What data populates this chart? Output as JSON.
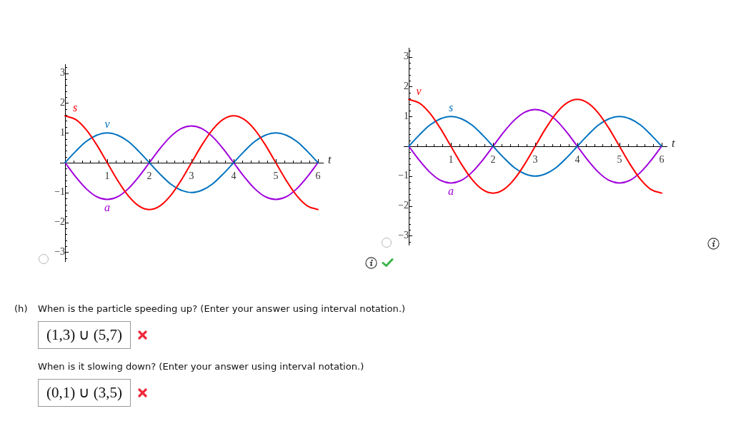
{
  "chart_data": [
    {
      "type": "line",
      "xlabel": "t",
      "x": [
        0,
        0.25,
        0.5,
        0.75,
        1,
        1.25,
        1.5,
        1.75,
        2,
        2.25,
        2.5,
        2.75,
        3,
        3.25,
        3.5,
        3.75,
        4,
        4.25,
        4.5,
        4.75,
        5,
        5.25,
        5.5,
        5.75,
        6
      ],
      "series": [
        {
          "name": "s",
          "color": "#ff0000",
          "values": [
            1.57,
            1.45,
            1.11,
            0.6,
            0,
            -0.6,
            -1.11,
            -1.45,
            -1.57,
            -1.45,
            -1.11,
            -0.6,
            0,
            0.6,
            1.11,
            1.45,
            1.57,
            1.45,
            1.11,
            0.6,
            0,
            -0.6,
            -1.11,
            -1.45,
            -1.57
          ]
        },
        {
          "name": "v",
          "color": "#0072c0",
          "values": [
            0,
            0.38,
            0.71,
            0.92,
            1,
            0.92,
            0.71,
            0.38,
            0,
            -0.38,
            -0.71,
            -0.92,
            -1,
            -0.92,
            -0.71,
            -0.38,
            0,
            0.38,
            0.71,
            0.92,
            1,
            0.92,
            0.71,
            0.38,
            0
          ]
        },
        {
          "name": "a",
          "color": "#a000dc",
          "values": [
            0,
            -0.47,
            -0.87,
            -1.14,
            -1.23,
            -1.14,
            -0.87,
            -0.47,
            0,
            0.47,
            0.87,
            1.14,
            1.23,
            1.14,
            0.87,
            0.47,
            0,
            -0.47,
            -0.87,
            -1.14,
            -1.23,
            -1.14,
            -0.87,
            -0.47,
            0
          ]
        }
      ],
      "xlim": [
        -0.12,
        6.12
      ],
      "ylim": [
        -3.3,
        3.3
      ],
      "xticks": [
        {
          "value": 0.2,
          "label": null
        },
        {
          "value": 0.4,
          "label": null
        },
        {
          "value": 0.6,
          "label": null
        },
        {
          "value": 0.8,
          "label": null
        },
        1,
        {
          "value": 1.2,
          "label": null
        },
        {
          "value": 1.4,
          "label": null
        },
        {
          "value": 1.6,
          "label": null
        },
        {
          "value": 1.8,
          "label": null
        },
        2,
        {
          "value": 2.2,
          "label": null
        },
        {
          "value": 2.4,
          "label": null
        },
        {
          "value": 2.6,
          "label": null
        },
        {
          "value": 2.8,
          "label": null
        },
        3,
        {
          "value": 3.2,
          "label": null
        },
        {
          "value": 3.4,
          "label": null
        },
        {
          "value": 3.6,
          "label": null
        },
        {
          "value": 3.8,
          "label": null
        },
        4,
        {
          "value": 4.2,
          "label": null
        },
        {
          "value": 4.4,
          "label": null
        },
        {
          "value": 4.6,
          "label": null
        },
        {
          "value": 4.8,
          "label": null
        },
        5,
        {
          "value": 5.2,
          "label": null
        },
        {
          "value": 5.4,
          "label": null
        },
        {
          "value": 5.6,
          "label": null
        },
        {
          "value": 5.8,
          "label": null
        },
        6
      ],
      "yticks": [
        {
          "value": -3.2,
          "label": null
        },
        {
          "value": -3,
          "label": "−3"
        },
        {
          "value": -2.8,
          "label": null
        },
        {
          "value": -2.6,
          "label": null
        },
        {
          "value": -2.4,
          "label": null
        },
        {
          "value": -2.2,
          "label": null
        },
        {
          "value": -2,
          "label": "−2"
        },
        {
          "value": -1.8,
          "label": null
        },
        {
          "value": -1.6,
          "label": null
        },
        {
          "value": -1.4,
          "label": null
        },
        {
          "value": -1.2,
          "label": null
        },
        {
          "value": -1,
          "label": "−1"
        },
        {
          "value": -0.8,
          "label": null
        },
        {
          "value": -0.6,
          "label": null
        },
        {
          "value": -0.4,
          "label": null
        },
        {
          "value": -0.2,
          "label": null
        },
        {
          "value": 0.2,
          "label": null
        },
        {
          "value": 0.4,
          "label": null
        },
        {
          "value": 0.6,
          "label": null
        },
        {
          "value": 0.8,
          "label": null
        },
        1,
        {
          "value": 1.2,
          "label": null
        },
        {
          "value": 1.4,
          "label": null
        },
        {
          "value": 1.6,
          "label": null
        },
        {
          "value": 1.8,
          "label": null
        },
        2,
        {
          "value": 2.2,
          "label": null
        },
        {
          "value": 2.4,
          "label": null
        },
        {
          "value": 2.6,
          "label": null
        },
        {
          "value": 2.8,
          "label": null
        },
        3,
        {
          "value": 3.2,
          "label": null
        }
      ]
    },
    {
      "type": "line",
      "xlabel": "t",
      "x": [
        0,
        0.25,
        0.5,
        0.75,
        1,
        1.25,
        1.5,
        1.75,
        2,
        2.25,
        2.5,
        2.75,
        3,
        3.25,
        3.5,
        3.75,
        4,
        4.25,
        4.5,
        4.75,
        5,
        5.25,
        5.5,
        5.75,
        6
      ],
      "series": [
        {
          "name": "v",
          "color": "#ff0000",
          "values": [
            1.57,
            1.45,
            1.11,
            0.6,
            0,
            -0.6,
            -1.11,
            -1.45,
            -1.57,
            -1.45,
            -1.11,
            -0.6,
            0,
            0.6,
            1.11,
            1.45,
            1.57,
            1.45,
            1.11,
            0.6,
            0,
            -0.6,
            -1.11,
            -1.45,
            -1.57
          ]
        },
        {
          "name": "s",
          "color": "#0072c0",
          "values": [
            0,
            0.38,
            0.71,
            0.92,
            1,
            0.92,
            0.71,
            0.38,
            0,
            -0.38,
            -0.71,
            -0.92,
            -1,
            -0.92,
            -0.71,
            -0.38,
            0,
            0.38,
            0.71,
            0.92,
            1,
            0.92,
            0.71,
            0.38,
            0
          ]
        },
        {
          "name": "a",
          "color": "#a000dc",
          "values": [
            0,
            -0.47,
            -0.87,
            -1.14,
            -1.23,
            -1.14,
            -0.87,
            -0.47,
            0,
            0.47,
            0.87,
            1.14,
            1.23,
            1.14,
            0.87,
            0.47,
            0,
            -0.47,
            -0.87,
            -1.14,
            -1.23,
            -1.14,
            -0.87,
            -0.47,
            0
          ]
        }
      ],
      "xlim": [
        -0.12,
        6.12
      ],
      "ylim": [
        -3.3,
        3.3
      ],
      "xticks": [
        {
          "value": 0.2,
          "label": null
        },
        {
          "value": 0.4,
          "label": null
        },
        {
          "value": 0.6,
          "label": null
        },
        {
          "value": 0.8,
          "label": null
        },
        1,
        {
          "value": 1.2,
          "label": null
        },
        {
          "value": 1.4,
          "label": null
        },
        {
          "value": 1.6,
          "label": null
        },
        {
          "value": 1.8,
          "label": null
        },
        2,
        {
          "value": 2.2,
          "label": null
        },
        {
          "value": 2.4,
          "label": null
        },
        {
          "value": 2.6,
          "label": null
        },
        {
          "value": 2.8,
          "label": null
        },
        3,
        {
          "value": 3.2,
          "label": null
        },
        {
          "value": 3.4,
          "label": null
        },
        {
          "value": 3.6,
          "label": null
        },
        {
          "value": 3.8,
          "label": null
        },
        4,
        {
          "value": 4.2,
          "label": null
        },
        {
          "value": 4.4,
          "label": null
        },
        {
          "value": 4.6,
          "label": null
        },
        {
          "value": 4.8,
          "label": null
        },
        5,
        {
          "value": 5.2,
          "label": null
        },
        {
          "value": 5.4,
          "label": null
        },
        {
          "value": 5.6,
          "label": null
        },
        {
          "value": 5.8,
          "label": null
        },
        6
      ],
      "yticks": [
        {
          "value": -3.2,
          "label": null
        },
        {
          "value": -3,
          "label": "−3"
        },
        {
          "value": -2.8,
          "label": null
        },
        {
          "value": -2.6,
          "label": null
        },
        {
          "value": -2.4,
          "label": null
        },
        {
          "value": -2.2,
          "label": null
        },
        {
          "value": -2,
          "label": "−2"
        },
        {
          "value": -1.8,
          "label": null
        },
        {
          "value": -1.6,
          "label": null
        },
        {
          "value": -1.4,
          "label": null
        },
        {
          "value": -1.2,
          "label": null
        },
        {
          "value": -1,
          "label": "−1"
        },
        {
          "value": -0.8,
          "label": null
        },
        {
          "value": -0.6,
          "label": null
        },
        {
          "value": -0.4,
          "label": null
        },
        {
          "value": -0.2,
          "label": null
        },
        {
          "value": 0.2,
          "label": null
        },
        {
          "value": 0.4,
          "label": null
        },
        {
          "value": 0.6,
          "label": null
        },
        {
          "value": 0.8,
          "label": null
        },
        1,
        {
          "value": 1.2,
          "label": null
        },
        {
          "value": 1.4,
          "label": null
        },
        {
          "value": 1.6,
          "label": null
        },
        {
          "value": 1.8,
          "label": null
        },
        2,
        {
          "value": 2.2,
          "label": null
        },
        {
          "value": 2.4,
          "label": null
        },
        {
          "value": 2.6,
          "label": null
        },
        {
          "value": 2.8,
          "label": null
        },
        3,
        {
          "value": 3.2,
          "label": null
        }
      ]
    },
    {
      "type": "other",
      "annotations": [
        "(h)",
        "When is the particle speeding up? (Enter your answer using interval notation.)",
        "(1,3) ∪ (5,7)",
        "When is it slowing down? (Enter your answer using interval notation.)",
        "(0,1) ∪ (3,5)"
      ]
    }
  ]
}
